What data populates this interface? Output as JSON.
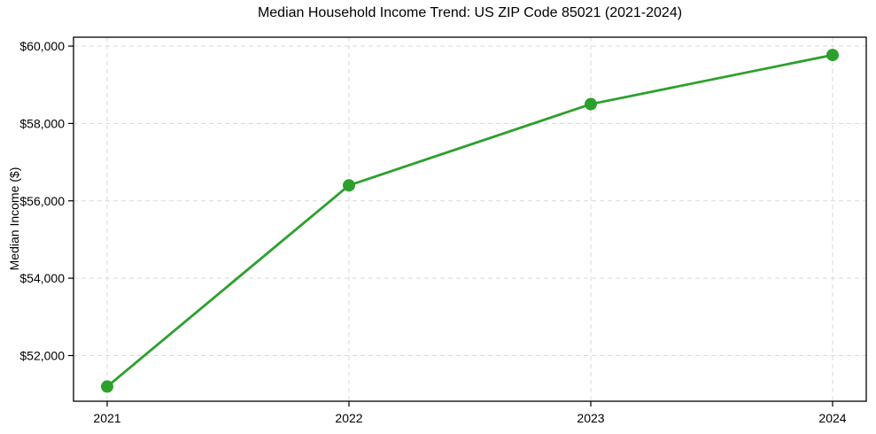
{
  "figure": {
    "background": "#ffffff"
  },
  "chart_data": {
    "type": "line",
    "title": "Median Household Income Trend: US ZIP Code 85021 (2021-2024)",
    "xlabel": "",
    "ylabel": "Median Income ($)",
    "categories": [
      "2021",
      "2022",
      "2023",
      "2024"
    ],
    "series": [
      {
        "name": "median-household-income",
        "color": "#2ca02c",
        "marker": "circle",
        "values": [
          51200,
          56400,
          58500,
          59770
        ]
      }
    ],
    "y_ticks": [
      {
        "value": 52000,
        "label": "$52,000"
      },
      {
        "value": 54000,
        "label": "$54,000"
      },
      {
        "value": 56000,
        "label": "$56,000"
      },
      {
        "value": 58000,
        "label": "$58,000"
      },
      {
        "value": 60000,
        "label": "$60,000"
      }
    ],
    "ylim": [
      50820,
      60230
    ],
    "grid": {
      "visible": true,
      "style": "dashed",
      "color": "#d9d9d9",
      "axes": "both"
    },
    "legend": "none",
    "spine_color": "#000000",
    "tick_color": "#000000",
    "text_color": "#000000"
  }
}
